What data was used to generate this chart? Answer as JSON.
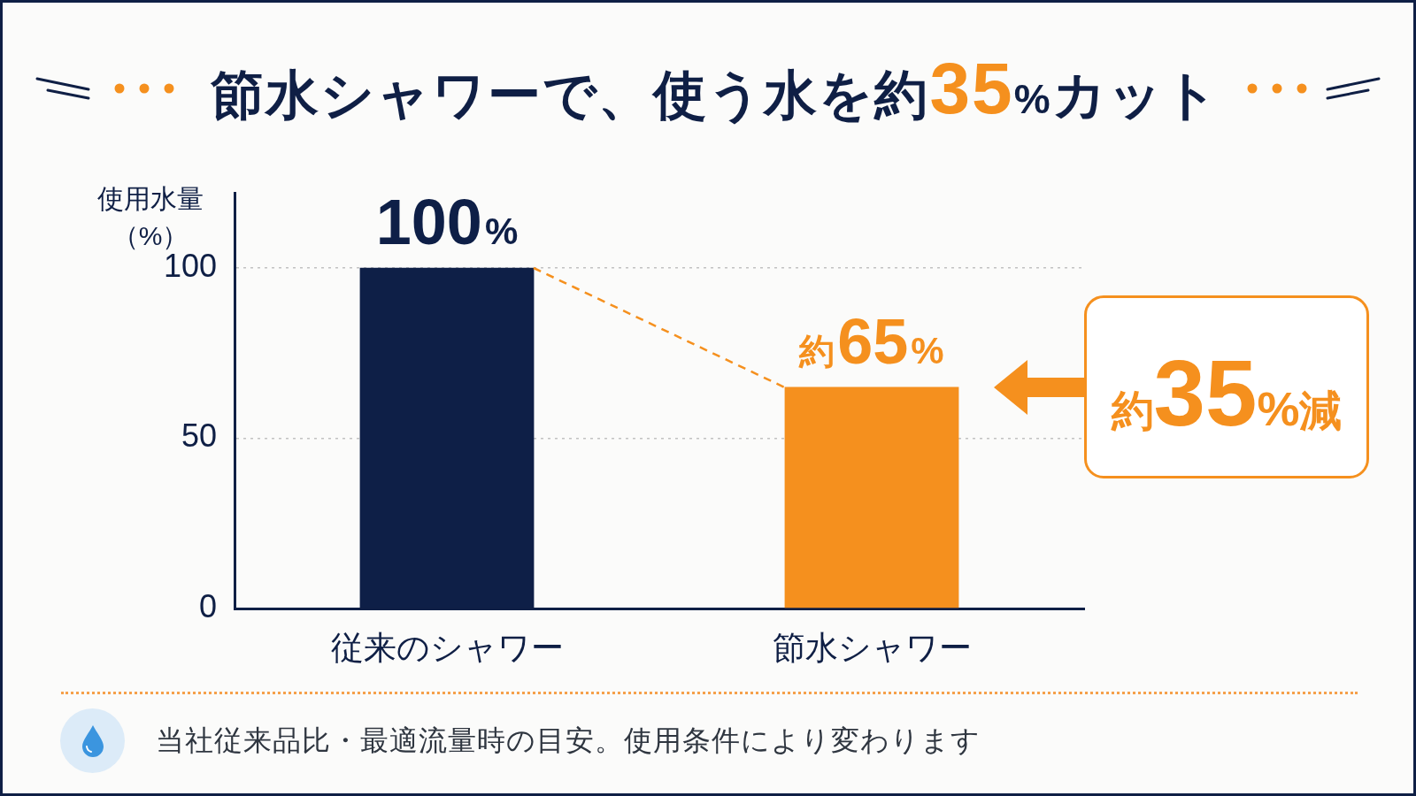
{
  "chart_data": {
    "type": "bar",
    "title": "節水シャワーで、使う水を約35%カット",
    "ylabel": "使用水量（%）",
    "categories": [
      "従来のシャワー",
      "節水シャワー"
    ],
    "series": [
      {
        "values": [
          100,
          65
        ],
        "colors": [
          "#0e1f47",
          "#f5901e"
        ],
        "value_labels": [
          "100%",
          "約65%"
        ]
      }
    ],
    "ylim": [
      0,
      122
    ],
    "yticks": [
      0,
      50,
      100
    ],
    "grid": "y",
    "annotations": [
      {
        "text": "約35%減",
        "x": "節水シャワー",
        "y": 65
      },
      "当社従来品比・最適流量時の目安。使用条件により変わります"
    ]
  }
}
